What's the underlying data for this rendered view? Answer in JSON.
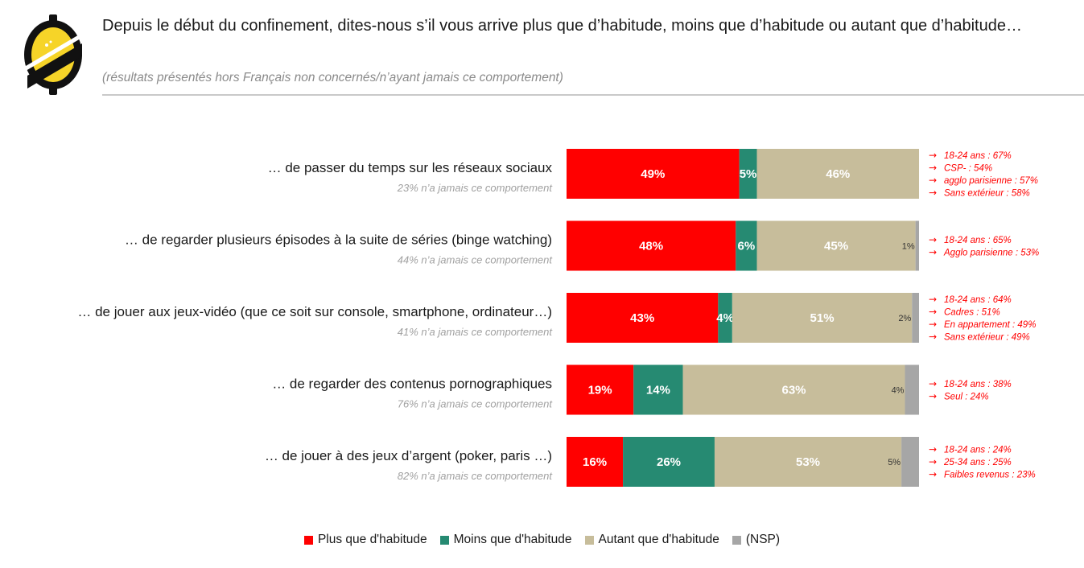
{
  "header": {
    "title": "Depuis le début du confinement, dites-nous s’il vous arrive plus que d’habitude, moins que d’habitude ou autant que d’habitude…",
    "subtitle": "(résultats présentés hors Français non concernés/n’ayant jamais ce comportement)"
  },
  "colors": {
    "plus": "#ff0000",
    "moins": "#268a72",
    "autant": "#c7bd9b",
    "nsp": "#a6a6a6",
    "note": "#ff0000",
    "logo_yellow": "#f6d428"
  },
  "logo": {
    "icon": "brand-logo-icon"
  },
  "chart_data": {
    "type": "bar",
    "orientation": "horizontal",
    "stacked": true,
    "xlim": [
      0,
      100
    ],
    "categories": [
      "… de passer du temps sur les réseaux sociaux",
      "… de regarder plusieurs épisodes à la suite de séries (binge watching)",
      "… de jouer aux jeux-vidéo (que ce soit sur console, smartphone, ordinateur…)",
      "… de regarder des contenus pornographiques",
      "… de jouer à des jeux d’argent (poker, paris …)"
    ],
    "category_notes": [
      "23% n’a jamais ce comportement",
      "44% n’a jamais ce comportement",
      "41% n’a jamais ce comportement",
      "76% n’a jamais ce comportement",
      "82% n’a jamais ce comportement"
    ],
    "series": [
      {
        "name": "Plus que d'habitude",
        "values": [
          49,
          48,
          43,
          19,
          16
        ],
        "labels": [
          "49%",
          "48%",
          "43%",
          "19%",
          "16%"
        ]
      },
      {
        "name": "Moins que d'habitude",
        "values": [
          5,
          6,
          4,
          14,
          26
        ],
        "labels": [
          "5%",
          "6%",
          "4%",
          "14%",
          "26%"
        ]
      },
      {
        "name": "Autant que d'habitude",
        "values": [
          46,
          45,
          51,
          63,
          53
        ],
        "labels": [
          "46%",
          "45%",
          "51%",
          "63%",
          "53%"
        ]
      },
      {
        "name": "(NSP)",
        "values": [
          0,
          1,
          2,
          4,
          5
        ],
        "labels": [
          "",
          "1%",
          "2%",
          "4%",
          "5%"
        ]
      }
    ],
    "annotations": [
      [
        "18-24 ans  : 67%",
        "CSP- : 54%",
        "agglo parisienne : 57%",
        "Sans extérieur : 58%"
      ],
      [
        "18-24 ans  : 65%",
        "Agglo parisienne : 53%"
      ],
      [
        "18-24 ans  : 64%",
        "Cadres : 51%",
        "En appartement : 49%",
        "Sans extérieur : 49%"
      ],
      [
        "18-24 ans  : 38%",
        "Seul : 24%"
      ],
      [
        "18-24 ans  : 24%",
        "25-34 ans : 25%",
        "Faibles revenus : 23%"
      ]
    ],
    "annotation_arrow": "→",
    "legend_position": "bottom",
    "grid": false
  }
}
